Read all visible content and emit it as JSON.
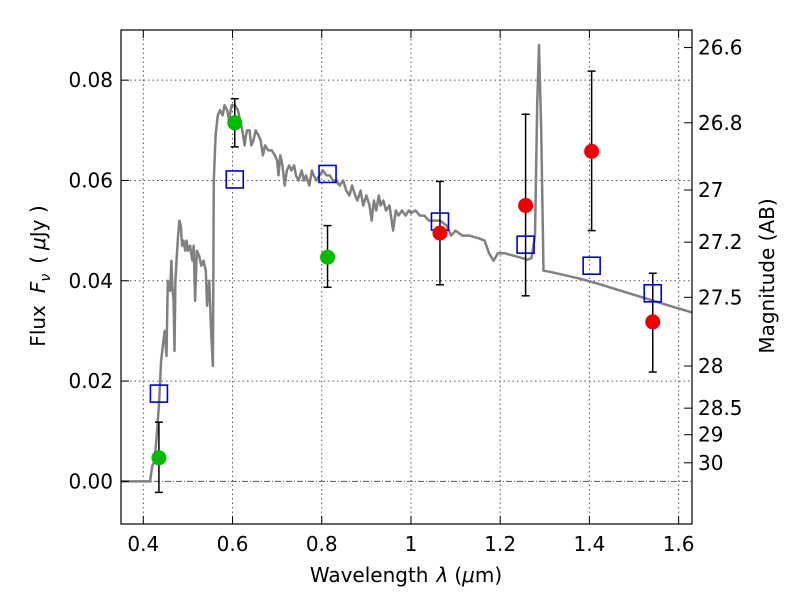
{
  "chart_data": {
    "type": "scatter",
    "xlabel_main": "Wavelength",
    "xlabel_symbol": "λ",
    "xlabel_unit_open": "(",
    "xlabel_unit_mu": "μ",
    "xlabel_unit_rest": "m)",
    "ylabel_main": "Flux",
    "ylabel_symbol_F": "F",
    "ylabel_symbol_sub": "ν",
    "ylabel_unit_open": "(",
    "ylabel_unit_mu": "μ",
    "ylabel_unit_rest": "Jy )",
    "y2label": "Magnitude (AB)",
    "xlim": [
      0.35,
      1.63
    ],
    "ylim": [
      -0.0085,
      0.09
    ],
    "grid": true,
    "x_ticks": [
      {
        "value": 0.4,
        "label": "0.4"
      },
      {
        "value": 0.6,
        "label": "0.6"
      },
      {
        "value": 0.8,
        "label": "0.8"
      },
      {
        "value": 1.0,
        "label": "1"
      },
      {
        "value": 1.2,
        "label": "1.2"
      },
      {
        "value": 1.4,
        "label": "1.4"
      },
      {
        "value": 1.6,
        "label": "1.6"
      }
    ],
    "y_ticks": [
      {
        "value": 0.0,
        "label": "0.00"
      },
      {
        "value": 0.02,
        "label": "0.02"
      },
      {
        "value": 0.04,
        "label": "0.04"
      },
      {
        "value": 0.06,
        "label": "0.06"
      },
      {
        "value": 0.08,
        "label": "0.08"
      }
    ],
    "y2_ticks": [
      {
        "flux": 0.0865,
        "label": "26.6"
      },
      {
        "flux": 0.0715,
        "label": "26.8"
      },
      {
        "flux": 0.0581,
        "label": "27"
      },
      {
        "flux": 0.0477,
        "label": "27.2"
      },
      {
        "flux": 0.0367,
        "label": "27.5"
      },
      {
        "flux": 0.023,
        "label": "28"
      },
      {
        "flux": 0.0146,
        "label": "28.5"
      },
      {
        "flux": 0.0093,
        "label": "29"
      },
      {
        "flux": 0.0037,
        "label": "30"
      }
    ],
    "colors": {
      "model": "#808080",
      "green": "#00bb00",
      "red": "#ee0000",
      "open_square": "#0000cc",
      "errorbar": "#000000",
      "grid": "#555555"
    },
    "series": [
      {
        "kind": "model_line",
        "points": [
          [
            0.35,
            0.0
          ],
          [
            0.415,
            0.0
          ],
          [
            0.42,
            0.003
          ],
          [
            0.425,
            0.004
          ],
          [
            0.43,
            0.009
          ],
          [
            0.435,
            0.015
          ],
          [
            0.44,
            0.024
          ],
          [
            0.445,
            0.028
          ],
          [
            0.448,
            0.03
          ],
          [
            0.452,
            0.025
          ],
          [
            0.455,
            0.04
          ],
          [
            0.46,
            0.038
          ],
          [
            0.463,
            0.044
          ],
          [
            0.465,
            0.039
          ],
          [
            0.468,
            0.036
          ],
          [
            0.47,
            0.026
          ],
          [
            0.472,
            0.04
          ],
          [
            0.475,
            0.045
          ],
          [
            0.478,
            0.049
          ],
          [
            0.481,
            0.052
          ],
          [
            0.484,
            0.051
          ],
          [
            0.487,
            0.047
          ],
          [
            0.49,
            0.048
          ],
          [
            0.494,
            0.046
          ],
          [
            0.497,
            0.048
          ],
          [
            0.5,
            0.046
          ],
          [
            0.505,
            0.047
          ],
          [
            0.508,
            0.045
          ],
          [
            0.51,
            0.044
          ],
          [
            0.513,
            0.047
          ],
          [
            0.516,
            0.036
          ],
          [
            0.52,
            0.046
          ],
          [
            0.525,
            0.045
          ],
          [
            0.53,
            0.043
          ],
          [
            0.535,
            0.044
          ],
          [
            0.54,
            0.042
          ],
          [
            0.543,
            0.035
          ],
          [
            0.548,
            0.04
          ],
          [
            0.552,
            0.03
          ],
          [
            0.556,
            0.023
          ],
          [
            0.558,
            0.06
          ],
          [
            0.562,
            0.069
          ],
          [
            0.567,
            0.073
          ],
          [
            0.572,
            0.074
          ],
          [
            0.578,
            0.073
          ],
          [
            0.582,
            0.075
          ],
          [
            0.588,
            0.074
          ],
          [
            0.592,
            0.072
          ],
          [
            0.598,
            0.075
          ],
          [
            0.605,
            0.075
          ],
          [
            0.612,
            0.074
          ],
          [
            0.617,
            0.072
          ],
          [
            0.622,
            0.07
          ],
          [
            0.627,
            0.067
          ],
          [
            0.63,
            0.069
          ],
          [
            0.633,
            0.07
          ],
          [
            0.638,
            0.07
          ],
          [
            0.642,
            0.067
          ],
          [
            0.647,
            0.068
          ],
          [
            0.652,
            0.07
          ],
          [
            0.658,
            0.069
          ],
          [
            0.663,
            0.068
          ],
          [
            0.668,
            0.065
          ],
          [
            0.673,
            0.067
          ],
          [
            0.68,
            0.066
          ],
          [
            0.688,
            0.066
          ],
          [
            0.695,
            0.065
          ],
          [
            0.7,
            0.064
          ],
          [
            0.703,
            0.061
          ],
          [
            0.707,
            0.065
          ],
          [
            0.712,
            0.063
          ],
          [
            0.717,
            0.059
          ],
          [
            0.722,
            0.062
          ],
          [
            0.727,
            0.063
          ],
          [
            0.732,
            0.062
          ],
          [
            0.738,
            0.063
          ],
          [
            0.742,
            0.061
          ],
          [
            0.748,
            0.06
          ],
          [
            0.755,
            0.062
          ],
          [
            0.76,
            0.06
          ],
          [
            0.765,
            0.061
          ],
          [
            0.772,
            0.059
          ],
          [
            0.778,
            0.062
          ],
          [
            0.782,
            0.061
          ],
          [
            0.788,
            0.06
          ],
          [
            0.795,
            0.061
          ],
          [
            0.803,
            0.062
          ],
          [
            0.81,
            0.061
          ],
          [
            0.818,
            0.061
          ],
          [
            0.825,
            0.06
          ],
          [
            0.832,
            0.06
          ],
          [
            0.84,
            0.059
          ],
          [
            0.848,
            0.06
          ],
          [
            0.855,
            0.058
          ],
          [
            0.862,
            0.057
          ],
          [
            0.868,
            0.059
          ],
          [
            0.875,
            0.057
          ],
          [
            0.88,
            0.056
          ],
          [
            0.887,
            0.058
          ],
          [
            0.893,
            0.055
          ],
          [
            0.9,
            0.057
          ],
          [
            0.907,
            0.055
          ],
          [
            0.912,
            0.052
          ],
          [
            0.917,
            0.056
          ],
          [
            0.922,
            0.054
          ],
          [
            0.928,
            0.057
          ],
          [
            0.932,
            0.055
          ],
          [
            0.938,
            0.056
          ],
          [
            0.944,
            0.054
          ],
          [
            0.952,
            0.055
          ],
          [
            0.96,
            0.05
          ],
          [
            0.966,
            0.054
          ],
          [
            0.972,
            0.053
          ],
          [
            0.98,
            0.054
          ],
          [
            0.988,
            0.053
          ],
          [
            0.995,
            0.054
          ],
          [
            1.0,
            0.0535
          ],
          [
            1.01,
            0.054
          ],
          [
            1.02,
            0.053
          ],
          [
            1.03,
            0.053
          ],
          [
            1.04,
            0.052
          ],
          [
            1.05,
            0.052
          ],
          [
            1.065,
            0.052
          ],
          [
            1.08,
            0.051
          ],
          [
            1.09,
            0.049
          ],
          [
            1.1,
            0.05
          ],
          [
            1.115,
            0.049
          ],
          [
            1.13,
            0.049
          ],
          [
            1.15,
            0.0485
          ],
          [
            1.165,
            0.048
          ],
          [
            1.175,
            0.0455
          ],
          [
            1.185,
            0.044
          ],
          [
            1.195,
            0.0455
          ],
          [
            1.21,
            0.0455
          ],
          [
            1.23,
            0.045
          ],
          [
            1.25,
            0.0445
          ],
          [
            1.26,
            0.0442
          ],
          [
            1.27,
            0.0445
          ],
          [
            1.278,
            0.049
          ],
          [
            1.283,
            0.075
          ],
          [
            1.287,
            0.087
          ],
          [
            1.292,
            0.07
          ],
          [
            1.297,
            0.042
          ],
          [
            1.31,
            0.0418
          ],
          [
            1.34,
            0.0412
          ],
          [
            1.38,
            0.0404
          ],
          [
            1.42,
            0.0394
          ],
          [
            1.46,
            0.0383
          ],
          [
            1.5,
            0.0372
          ],
          [
            1.54,
            0.0361
          ],
          [
            1.58,
            0.035
          ],
          [
            1.63,
            0.0337
          ]
        ]
      },
      {
        "kind": "open_squares",
        "points": [
          [
            0.435,
            0.0175
          ],
          [
            0.605,
            0.0602
          ],
          [
            0.813,
            0.0613
          ],
          [
            1.065,
            0.0518
          ],
          [
            1.257,
            0.0472
          ],
          [
            1.405,
            0.043
          ],
          [
            1.542,
            0.0375
          ]
        ]
      },
      {
        "kind": "green_points",
        "points": [
          {
            "x": 0.435,
            "y": 0.0047,
            "ylo": -0.0022,
            "yhi": 0.0118
          },
          {
            "x": 0.605,
            "y": 0.0715,
            "ylo": 0.0667,
            "yhi": 0.0763
          },
          {
            "x": 0.813,
            "y": 0.0447,
            "ylo": 0.0387,
            "yhi": 0.051
          }
        ]
      },
      {
        "kind": "red_points",
        "points": [
          {
            "x": 1.065,
            "y": 0.0495,
            "ylo": 0.0392,
            "yhi": 0.0598
          },
          {
            "x": 1.257,
            "y": 0.055,
            "ylo": 0.037,
            "yhi": 0.0732
          },
          {
            "x": 1.405,
            "y": 0.0658,
            "ylo": 0.05,
            "yhi": 0.0818
          },
          {
            "x": 1.542,
            "y": 0.0318,
            "ylo": 0.0218,
            "yhi": 0.0415
          }
        ]
      }
    ]
  }
}
